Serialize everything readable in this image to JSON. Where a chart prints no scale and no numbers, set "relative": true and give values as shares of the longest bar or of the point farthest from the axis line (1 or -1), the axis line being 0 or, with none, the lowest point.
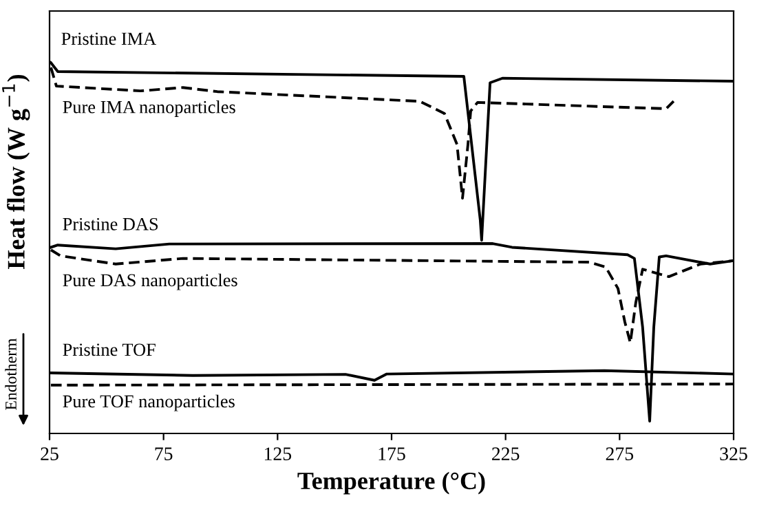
{
  "chart_data": {
    "type": "line",
    "relative": true,
    "xlabel": "Temperature (°C)",
    "ylabel": "Heat flow (W g$^{−1}$)",
    "xlim": [
      25,
      325
    ],
    "xticks": [
      25,
      75,
      125,
      175,
      225,
      275,
      325
    ],
    "grid": false,
    "legend": false,
    "marker": "none",
    "annotations": [
      "Endotherm"
    ],
    "series": [
      {
        "name": "Pristine IMA",
        "color": "#000000",
        "line_style": "solid",
        "x": [
          25,
          25.6,
          28.6,
          206.7,
          213.9,
          214.5,
          218.2,
          223.6,
          325
        ],
        "values": [
          1.0,
          0.998,
          0.974,
          0.961,
          0.574,
          0.52,
          0.944,
          0.956,
          0.948
        ]
      },
      {
        "name": "Pure IMA nanoparticles",
        "color": "#000000",
        "line_style": "dashed",
        "x": [
          25.6,
          28.0,
          64.8,
          83.5,
          98.6,
          187.4,
          198.2,
          203.7,
          206.1,
          208.5,
          209.7,
          212.7,
          295.4,
          298.7
        ],
        "values": [
          0.985,
          0.935,
          0.922,
          0.931,
          0.92,
          0.894,
          0.861,
          0.778,
          0.633,
          0.778,
          0.868,
          0.891,
          0.874,
          0.894
        ]
      },
      {
        "name": "Pristine DAS",
        "color": "#000000",
        "line_style": "solid",
        "x": [
          25.6,
          28.6,
          54,
          77.5,
          219.4,
          227.8,
          278.5,
          281.5,
          285.1,
          288.2,
          290,
          292.4,
          295.4,
          314.7,
          325
        ],
        "values": [
          0.501,
          0.507,
          0.497,
          0.51,
          0.511,
          0.501,
          0.481,
          0.471,
          0.286,
          0.033,
          0.286,
          0.475,
          0.478,
          0.456,
          0.465
        ]
      },
      {
        "name": "Pure DAS nanoparticles",
        "color": "#000000",
        "line_style": "dashed",
        "x": [
          25.6,
          29.8,
          54,
          83.5,
          261.6,
          268.9,
          274.3,
          277.3,
          279.7,
          282.1,
          285.1,
          296.6,
          310.5,
          325
        ],
        "values": [
          0.494,
          0.478,
          0.456,
          0.471,
          0.461,
          0.448,
          0.39,
          0.3,
          0.244,
          0.352,
          0.442,
          0.422,
          0.456,
          0.465
        ]
      },
      {
        "name": "Pristine TOF",
        "color": "#000000",
        "line_style": "solid",
        "x": [
          25.6,
          87.8,
          154.8,
          167.5,
          172.9,
          268.3,
          325
        ],
        "values": [
          0.163,
          0.156,
          0.159,
          0.143,
          0.16,
          0.169,
          0.16
        ]
      },
      {
        "name": "Pure TOF nanoparticles",
        "color": "#000000",
        "line_style": "dashed",
        "x": [
          25.6,
          325
        ],
        "values": [
          0.13,
          0.133
        ]
      }
    ]
  }
}
